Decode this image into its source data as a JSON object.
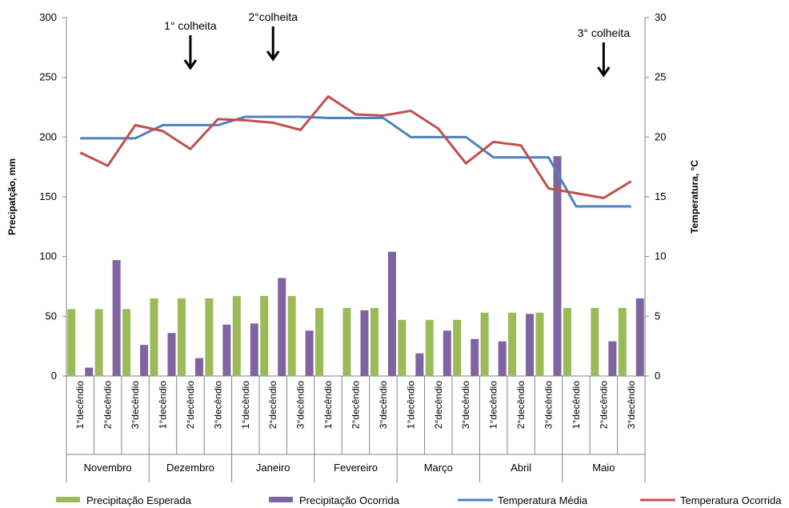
{
  "chart_data": {
    "type": "bar",
    "title": "",
    "ylabel_left": "Precipatção, mm",
    "ylabel_right": "Temperatura, °C",
    "ylim_left": [
      0,
      300
    ],
    "ylim_right": [
      0,
      30
    ],
    "yticks_left": [
      "0",
      "50",
      "100",
      "150",
      "200",
      "250",
      "300"
    ],
    "yticks_right": [
      "0",
      "5",
      "10",
      "15",
      "20",
      "25",
      "30"
    ],
    "grid": false,
    "legend_position": "bottom",
    "months": [
      "Novembro",
      "Dezembro",
      "Janeiro",
      "Fevereiro",
      "Março",
      "Abril",
      "Maio"
    ],
    "categories": [
      "1°decêndio",
      "2°decêndio",
      "3°decêndio",
      "1°decêndio",
      "2°decêndio",
      "3°decêndio",
      "1°decêndio",
      "2°decêndio",
      "3°decêndio",
      "1°decêndio",
      "2°decêndio",
      "3°decêndio",
      "1°decêndio",
      "2°decêndio",
      "3°decêndio",
      "1°decêndio",
      "2°decêndio",
      "3°decêndio",
      "1°decêndio",
      "2°decêndio",
      "3°decêndio"
    ],
    "series": [
      {
        "name": "Precipitação Esperada",
        "kind": "bar",
        "axis": "left",
        "color": "#9BBB59",
        "values": [
          56,
          56,
          56,
          65,
          65,
          65,
          67,
          67,
          67,
          57,
          57,
          57,
          47,
          47,
          47,
          53,
          53,
          53,
          57,
          57,
          57
        ]
      },
      {
        "name": "Precipitação Ocorrida",
        "kind": "bar",
        "axis": "left",
        "color": "#8064A2",
        "values": [
          7,
          97,
          26,
          36,
          15,
          43,
          44,
          82,
          38,
          0,
          55,
          104,
          19,
          38,
          31,
          29,
          52,
          184,
          0,
          29,
          65
        ]
      },
      {
        "name": "Temperatura  Média",
        "kind": "line",
        "axis": "right",
        "color": "#4F81BD",
        "values": [
          19.9,
          19.9,
          19.9,
          21.0,
          21.0,
          21.0,
          21.7,
          21.7,
          21.7,
          21.6,
          21.6,
          21.6,
          20.0,
          20.0,
          20.0,
          18.3,
          18.3,
          18.3,
          14.2,
          14.2,
          14.2
        ]
      },
      {
        "name": "Temperatura  Ocorrida",
        "kind": "line",
        "axis": "right",
        "color": "#C0504D",
        "values": [
          18.7,
          17.6,
          21.0,
          20.5,
          19.0,
          21.5,
          21.4,
          21.2,
          20.6,
          23.4,
          21.9,
          21.8,
          22.2,
          20.7,
          17.8,
          19.6,
          19.3,
          15.7,
          15.3,
          14.9,
          16.3
        ]
      }
    ],
    "annotations": [
      {
        "text": "1° colheita",
        "category_index": 4
      },
      {
        "text": "2°colheita",
        "category_index": 7
      },
      {
        "text": "3° colheita",
        "category_index": 19
      }
    ]
  }
}
